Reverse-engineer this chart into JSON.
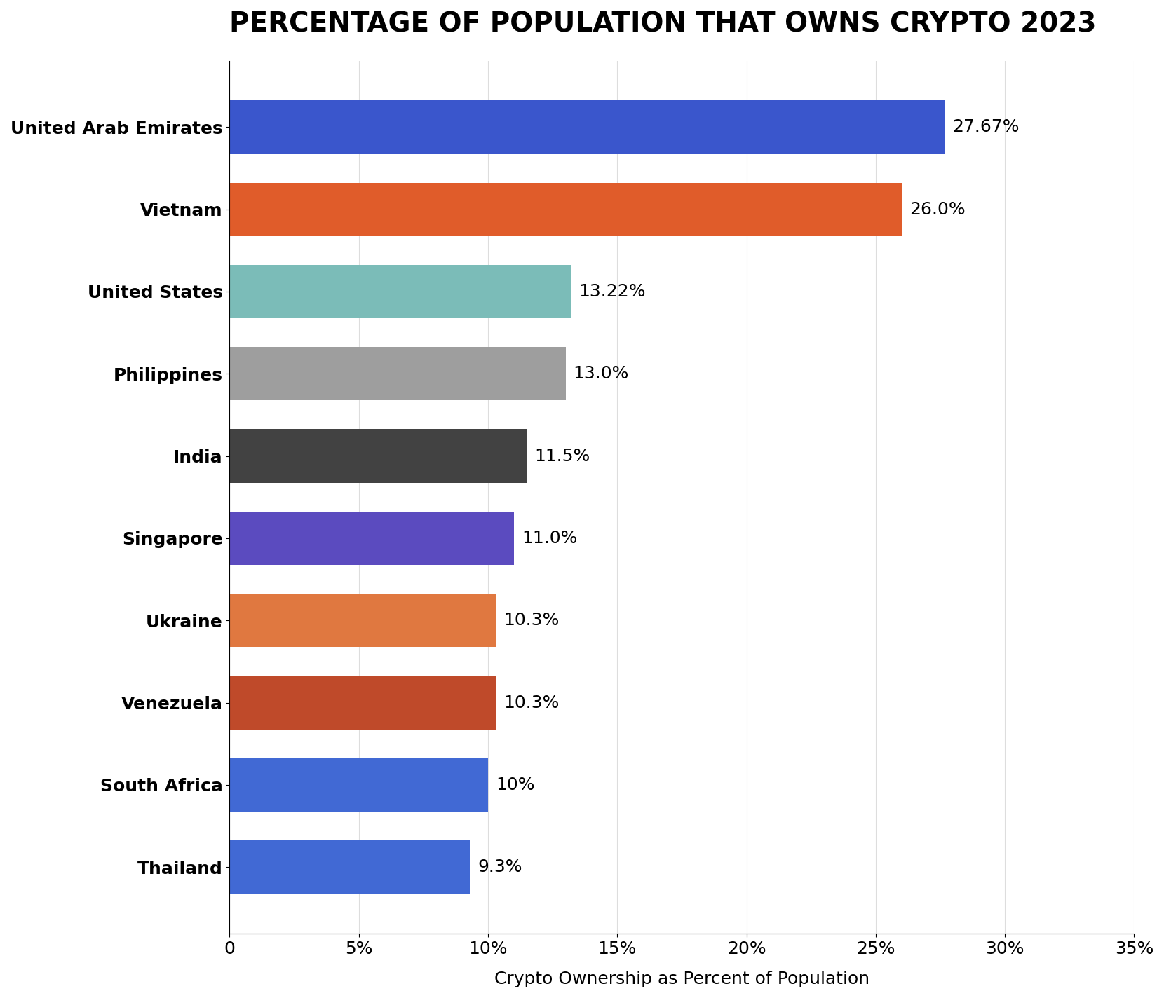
{
  "title": "PERCENTAGE OF POPULATION THAT OWNS CRYPTO 2023",
  "xlabel": "Crypto Ownership as Percent of Population",
  "categories": [
    "United Arab Emirates",
    "Vietnam",
    "United States",
    "Philippines",
    "India",
    "Singapore",
    "Ukraine",
    "Venezuela",
    "South Africa",
    "Thailand"
  ],
  "values": [
    27.67,
    26.0,
    13.22,
    13.0,
    11.5,
    11.0,
    10.3,
    10.3,
    10.0,
    9.3
  ],
  "labels": [
    "27.67%",
    "26.0%",
    "13.22%",
    "13.0%",
    "11.5%",
    "11.0%",
    "10.3%",
    "10.3%",
    "10%",
    "9.3%"
  ],
  "bar_colors": [
    "#3a56cc",
    "#e05c2a",
    "#7bbcb8",
    "#9e9e9e",
    "#424242",
    "#5b4bbf",
    "#e07840",
    "#bf4a2a",
    "#4169d4",
    "#4169d4"
  ],
  "xlim": [
    0,
    35
  ],
  "xticks": [
    0,
    5,
    10,
    15,
    20,
    25,
    30,
    35
  ],
  "xtick_labels": [
    "0",
    "5%",
    "10%",
    "15%",
    "20%",
    "25%",
    "30%",
    "35%"
  ],
  "background_color": "#ffffff",
  "title_fontsize": 28,
  "tick_fontsize": 18,
  "bar_label_fontsize": 18,
  "xlabel_fontsize": 18
}
